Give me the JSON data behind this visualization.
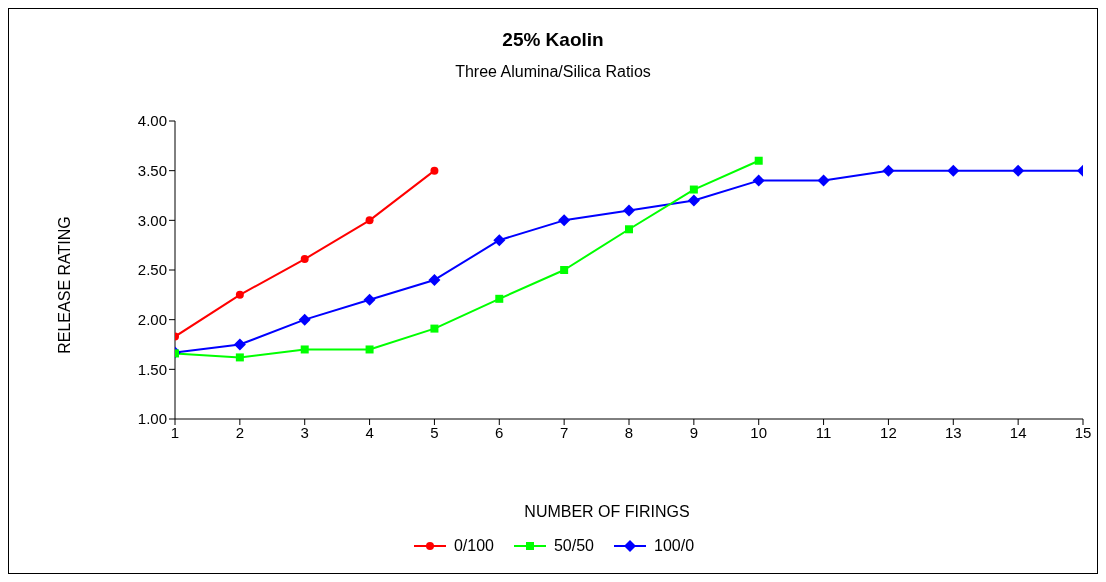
{
  "chart_data": {
    "type": "line",
    "title": "25% Kaolin",
    "subtitle": "Three Alumina/Silica Ratios",
    "xlabel": "NUMBER OF FIRINGS",
    "ylabel": "RELEASE RATING",
    "x": [
      1,
      2,
      3,
      4,
      5,
      6,
      7,
      8,
      9,
      10,
      11,
      12,
      13,
      14,
      15
    ],
    "series": [
      {
        "name": "0/100",
        "color": "#ff0000",
        "marker": "circle",
        "values": [
          1.83,
          2.25,
          2.61,
          3.0,
          3.5,
          null,
          null,
          null,
          null,
          null,
          null,
          null,
          null,
          null,
          null
        ]
      },
      {
        "name": "50/50",
        "color": "#00ff00",
        "marker": "square",
        "values": [
          1.66,
          1.62,
          1.7,
          1.7,
          1.91,
          2.21,
          2.5,
          2.91,
          3.31,
          3.6,
          null,
          null,
          null,
          null,
          null
        ]
      },
      {
        "name": "100/0",
        "color": "#0000ff",
        "marker": "diamond",
        "values": [
          1.67,
          1.75,
          2.0,
          2.2,
          2.4,
          2.8,
          3.0,
          3.1,
          3.2,
          3.4,
          3.4,
          3.5,
          3.5,
          3.5,
          3.5
        ]
      }
    ],
    "xlim": [
      1,
      15
    ],
    "xticks": [
      1,
      2,
      3,
      4,
      5,
      6,
      7,
      8,
      9,
      10,
      11,
      12,
      13,
      14,
      15
    ],
    "ylim": [
      1.0,
      4.0
    ],
    "yticks": [
      {
        "value": 1.0,
        "label": "1.00"
      },
      {
        "value": 1.5,
        "label": "1.50"
      },
      {
        "value": 2.0,
        "label": "2.00"
      },
      {
        "value": 2.5,
        "label": "2.50"
      },
      {
        "value": 3.0,
        "label": "3.00"
      },
      {
        "value": 3.5,
        "label": "3.50"
      },
      {
        "value": 4.0,
        "label": "4.00"
      }
    ],
    "grid": false,
    "legend": "bottom",
    "line_style": "solid"
  }
}
